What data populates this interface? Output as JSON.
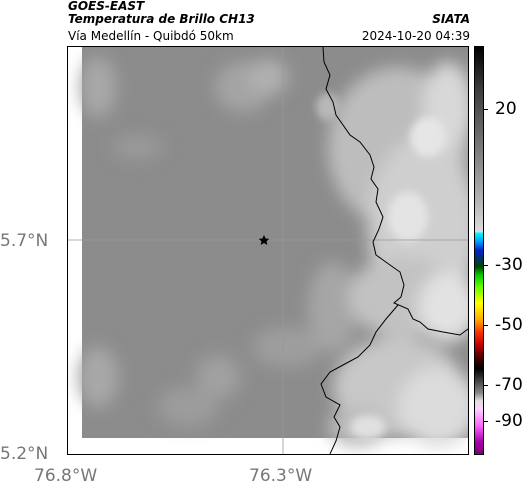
{
  "header": {
    "satellite": "GOES-EAST",
    "product": "Temperatura de Brillo CH13",
    "region": "Vía Medellín - Quibdó 50km",
    "agency": "SIATA",
    "timestamp": "2024-10-20 04:39"
  },
  "axes": {
    "y_ticks": [
      "5.7°N",
      "5.2°N"
    ],
    "x_ticks": [
      "76.8°W",
      "76.3°W"
    ]
  },
  "colorbar": {
    "ticks": [
      "20",
      "-30",
      "-50",
      "-70",
      "-90"
    ]
  },
  "map": {
    "marker": "star-icon",
    "colors": {
      "background": "#8c8c8c",
      "cloud_light": "#d6d6d6",
      "border": "#000000"
    }
  }
}
